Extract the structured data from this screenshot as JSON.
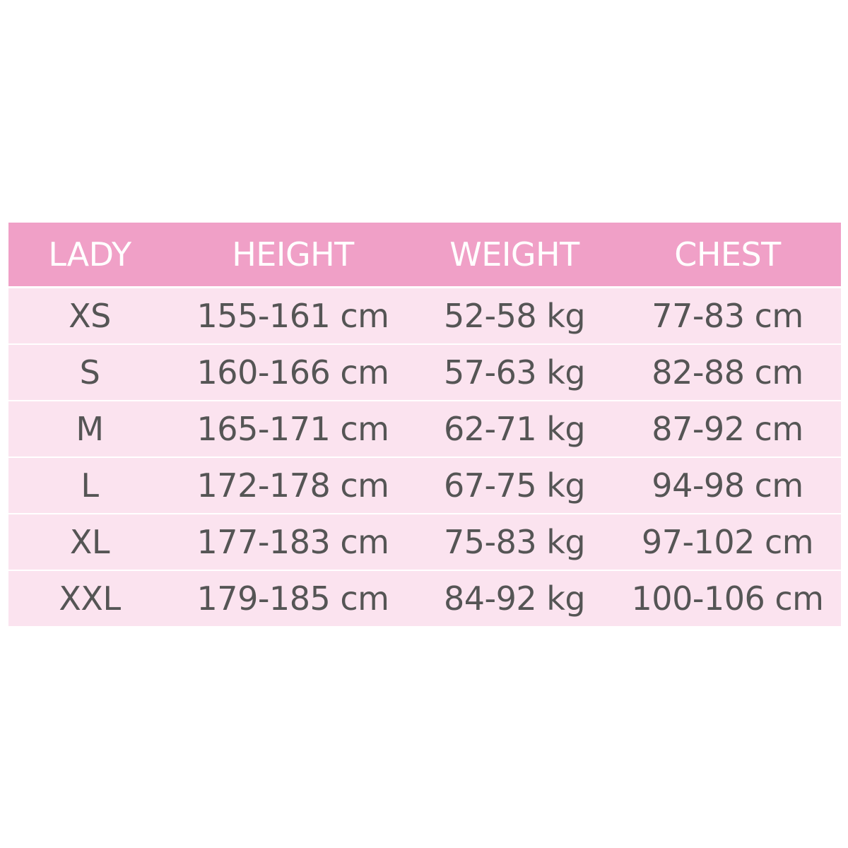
{
  "table": {
    "header": [
      "LADY",
      "HEIGHT",
      "WEIGHT",
      "CHEST"
    ],
    "rows": [
      [
        "XS",
        "155-161 cm",
        "52-58 kg",
        "77-83 cm"
      ],
      [
        "S",
        "160-166 cm",
        "57-63 kg",
        "82-88 cm"
      ],
      [
        "M",
        "165-171 cm",
        "62-71 kg",
        "87-92 cm"
      ],
      [
        "L",
        "172-178 cm",
        "67-75 kg",
        "94-98 cm"
      ],
      [
        "XL",
        "177-183 cm",
        "75-83 kg",
        "97-102 cm"
      ],
      [
        "XXL",
        "179-185 cm",
        "84-92 kg",
        "100-106 cm"
      ]
    ]
  }
}
